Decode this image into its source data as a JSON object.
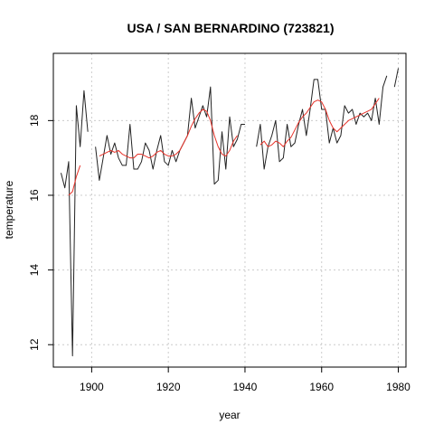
{
  "chart_data": {
    "type": "line",
    "title": "USA / SAN BERNARDINO (723821)",
    "xlabel": "year",
    "ylabel": "temperature",
    "xlim": [
      1890,
      1982
    ],
    "ylim": [
      11.4,
      19.8
    ],
    "x_ticks": [
      1900,
      1920,
      1940,
      1960,
      1980
    ],
    "y_ticks": [
      12,
      14,
      16,
      18
    ],
    "grid": true,
    "legend": "none",
    "series": [
      {
        "kind": "annual",
        "color": "#222222",
        "segments": [
          [
            [
              1892,
              16.6
            ],
            [
              1893,
              16.2
            ],
            [
              1894,
              16.9
            ],
            [
              1895,
              11.7
            ],
            [
              1896,
              18.4
            ],
            [
              1897,
              17.3
            ],
            [
              1898,
              18.8
            ],
            [
              1899,
              17.7
            ]
          ],
          [
            [
              1901,
              17.3
            ],
            [
              1902,
              16.4
            ],
            [
              1903,
              17.0
            ],
            [
              1904,
              17.6
            ],
            [
              1905,
              17.1
            ],
            [
              1906,
              17.4
            ],
            [
              1907,
              17.0
            ],
            [
              1908,
              16.8
            ],
            [
              1909,
              16.8
            ],
            [
              1910,
              17.9
            ],
            [
              1911,
              16.7
            ],
            [
              1912,
              16.7
            ],
            [
              1913,
              16.9
            ],
            [
              1914,
              17.4
            ],
            [
              1915,
              17.2
            ],
            [
              1916,
              16.7
            ],
            [
              1917,
              17.2
            ],
            [
              1918,
              17.6
            ],
            [
              1919,
              16.9
            ],
            [
              1920,
              16.8
            ],
            [
              1921,
              17.2
            ],
            [
              1922,
              16.9
            ],
            [
              1923,
              17.2
            ],
            [
              1924,
              17.4
            ],
            [
              1925,
              17.6
            ],
            [
              1926,
              18.6
            ],
            [
              1927,
              17.8
            ],
            [
              1928,
              18.1
            ],
            [
              1929,
              18.4
            ],
            [
              1930,
              18.1
            ],
            [
              1931,
              18.9
            ],
            [
              1932,
              16.3
            ],
            [
              1933,
              16.4
            ],
            [
              1934,
              17.7
            ],
            [
              1935,
              16.7
            ],
            [
              1936,
              18.1
            ],
            [
              1937,
              17.3
            ],
            [
              1938,
              17.5
            ],
            [
              1939,
              17.9
            ],
            [
              1940,
              17.9
            ]
          ],
          [
            [
              1943,
              17.3
            ],
            [
              1944,
              17.9
            ],
            [
              1945,
              16.7
            ],
            [
              1946,
              17.3
            ],
            [
              1947,
              17.6
            ],
            [
              1948,
              18.0
            ],
            [
              1949,
              16.9
            ],
            [
              1950,
              17.0
            ],
            [
              1951,
              17.9
            ],
            [
              1952,
              17.3
            ],
            [
              1953,
              17.4
            ],
            [
              1954,
              17.9
            ],
            [
              1955,
              18.3
            ],
            [
              1956,
              17.6
            ],
            [
              1957,
              18.3
            ],
            [
              1958,
              19.1
            ],
            [
              1959,
              19.1
            ],
            [
              1960,
              18.3
            ],
            [
              1961,
              18.3
            ],
            [
              1962,
              17.4
            ],
            [
              1963,
              17.8
            ],
            [
              1964,
              17.4
            ],
            [
              1965,
              17.6
            ],
            [
              1966,
              18.4
            ],
            [
              1967,
              18.2
            ],
            [
              1968,
              18.3
            ],
            [
              1969,
              17.9
            ],
            [
              1970,
              18.2
            ],
            [
              1971,
              18.1
            ],
            [
              1972,
              18.2
            ],
            [
              1973,
              18.0
            ],
            [
              1974,
              18.6
            ],
            [
              1975,
              17.9
            ],
            [
              1976,
              18.9
            ],
            [
              1977,
              19.2
            ]
          ],
          [
            [
              1979,
              18.9
            ],
            [
              1980,
              19.4
            ]
          ]
        ]
      },
      {
        "kind": "smoothed",
        "color": "#e8332a",
        "segments": [
          [
            [
              1894,
              16.0
            ],
            [
              1895,
              16.1
            ],
            [
              1896,
              16.5
            ],
            [
              1897,
              16.8
            ]
          ],
          [
            [
              1902,
              17.05
            ],
            [
              1903,
              17.1
            ],
            [
              1904,
              17.15
            ],
            [
              1905,
              17.2
            ],
            [
              1906,
              17.15
            ],
            [
              1907,
              17.2
            ],
            [
              1908,
              17.1
            ],
            [
              1909,
              17.05
            ],
            [
              1910,
              17.0
            ],
            [
              1911,
              17.0
            ],
            [
              1912,
              17.1
            ],
            [
              1913,
              17.1
            ],
            [
              1914,
              17.05
            ],
            [
              1915,
              17.0
            ],
            [
              1916,
              17.05
            ],
            [
              1917,
              17.15
            ],
            [
              1918,
              17.2
            ],
            [
              1919,
              17.1
            ],
            [
              1920,
              17.05
            ],
            [
              1921,
              17.05
            ],
            [
              1922,
              17.1
            ],
            [
              1923,
              17.2
            ],
            [
              1924,
              17.4
            ],
            [
              1925,
              17.6
            ],
            [
              1926,
              17.85
            ],
            [
              1927,
              18.05
            ],
            [
              1928,
              18.2
            ],
            [
              1929,
              18.3
            ],
            [
              1930,
              18.25
            ],
            [
              1931,
              18.0
            ],
            [
              1932,
              17.6
            ],
            [
              1933,
              17.3
            ],
            [
              1934,
              17.1
            ],
            [
              1935,
              17.05
            ],
            [
              1936,
              17.2
            ],
            [
              1937,
              17.45
            ],
            [
              1938,
              17.6
            ]
          ],
          [
            [
              1944,
              17.35
            ],
            [
              1945,
              17.45
            ],
            [
              1946,
              17.3
            ],
            [
              1947,
              17.35
            ],
            [
              1948,
              17.45
            ],
            [
              1949,
              17.4
            ],
            [
              1950,
              17.3
            ],
            [
              1951,
              17.45
            ],
            [
              1952,
              17.55
            ],
            [
              1953,
              17.75
            ],
            [
              1954,
              17.95
            ],
            [
              1955,
              18.1
            ],
            [
              1956,
              18.2
            ],
            [
              1957,
              18.35
            ],
            [
              1958,
              18.5
            ],
            [
              1959,
              18.55
            ],
            [
              1960,
              18.5
            ],
            [
              1961,
              18.3
            ],
            [
              1962,
              18.0
            ],
            [
              1963,
              17.8
            ],
            [
              1964,
              17.7
            ],
            [
              1965,
              17.8
            ],
            [
              1966,
              17.9
            ],
            [
              1967,
              18.0
            ],
            [
              1968,
              18.05
            ],
            [
              1969,
              18.1
            ],
            [
              1970,
              18.15
            ],
            [
              1971,
              18.2
            ],
            [
              1972,
              18.25
            ],
            [
              1973,
              18.3
            ],
            [
              1974,
              18.45
            ],
            [
              1975,
              18.6
            ]
          ]
        ]
      }
    ]
  }
}
